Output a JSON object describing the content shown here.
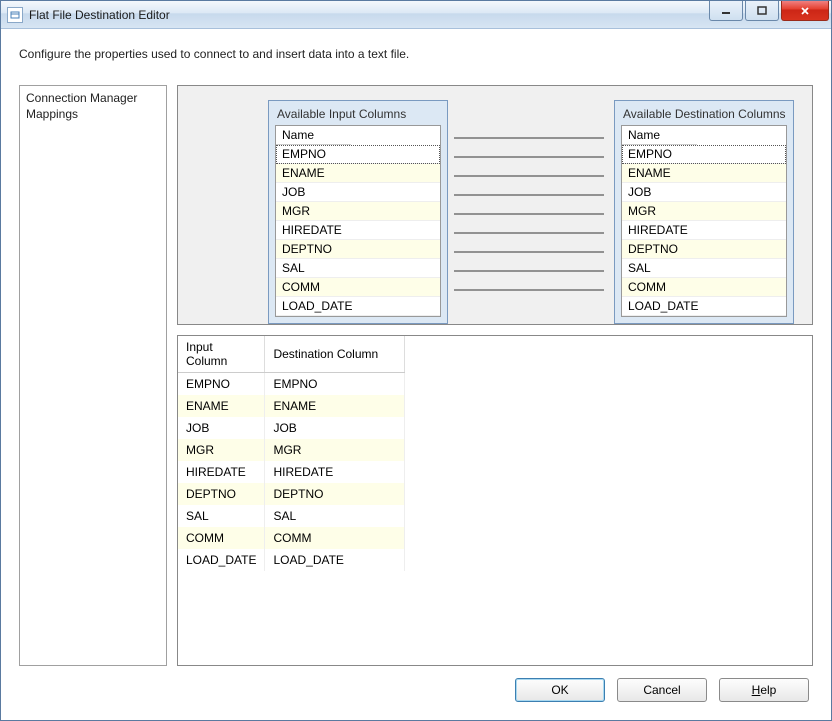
{
  "window": {
    "title": "Flat File Destination Editor",
    "description": "Configure the properties used to connect to and insert data into a text file."
  },
  "sidebar": {
    "items": [
      {
        "label": "Connection Manager"
      },
      {
        "label": "Mappings"
      }
    ]
  },
  "mapping": {
    "input_title": "Available Input Columns",
    "dest_title": "Available Destination Columns",
    "column_header": "Name",
    "columns": [
      "EMPNO",
      "ENAME",
      "JOB",
      "MGR",
      "HIREDATE",
      "DEPTNO",
      "SAL",
      "COMM",
      "LOAD_DATE"
    ]
  },
  "grid": {
    "headers": {
      "input": "Input Column",
      "dest": "Destination Column"
    },
    "rows": [
      {
        "input": "EMPNO",
        "dest": "EMPNO"
      },
      {
        "input": "ENAME",
        "dest": "ENAME"
      },
      {
        "input": "JOB",
        "dest": "JOB"
      },
      {
        "input": "MGR",
        "dest": "MGR"
      },
      {
        "input": "HIREDATE",
        "dest": "HIREDATE"
      },
      {
        "input": "DEPTNO",
        "dest": "DEPTNO"
      },
      {
        "input": "SAL",
        "dest": "SAL"
      },
      {
        "input": "COMM",
        "dest": "COMM"
      },
      {
        "input": "LOAD_DATE",
        "dest": "LOAD_DATE"
      }
    ]
  },
  "buttons": {
    "ok": "OK",
    "cancel": "Cancel",
    "help": "Help"
  },
  "colors": {
    "alt_row": "#fefee8",
    "panel_bg": "#f0f0f0",
    "box_bg": "#dce8f4",
    "box_border": "#7a9ac0"
  }
}
